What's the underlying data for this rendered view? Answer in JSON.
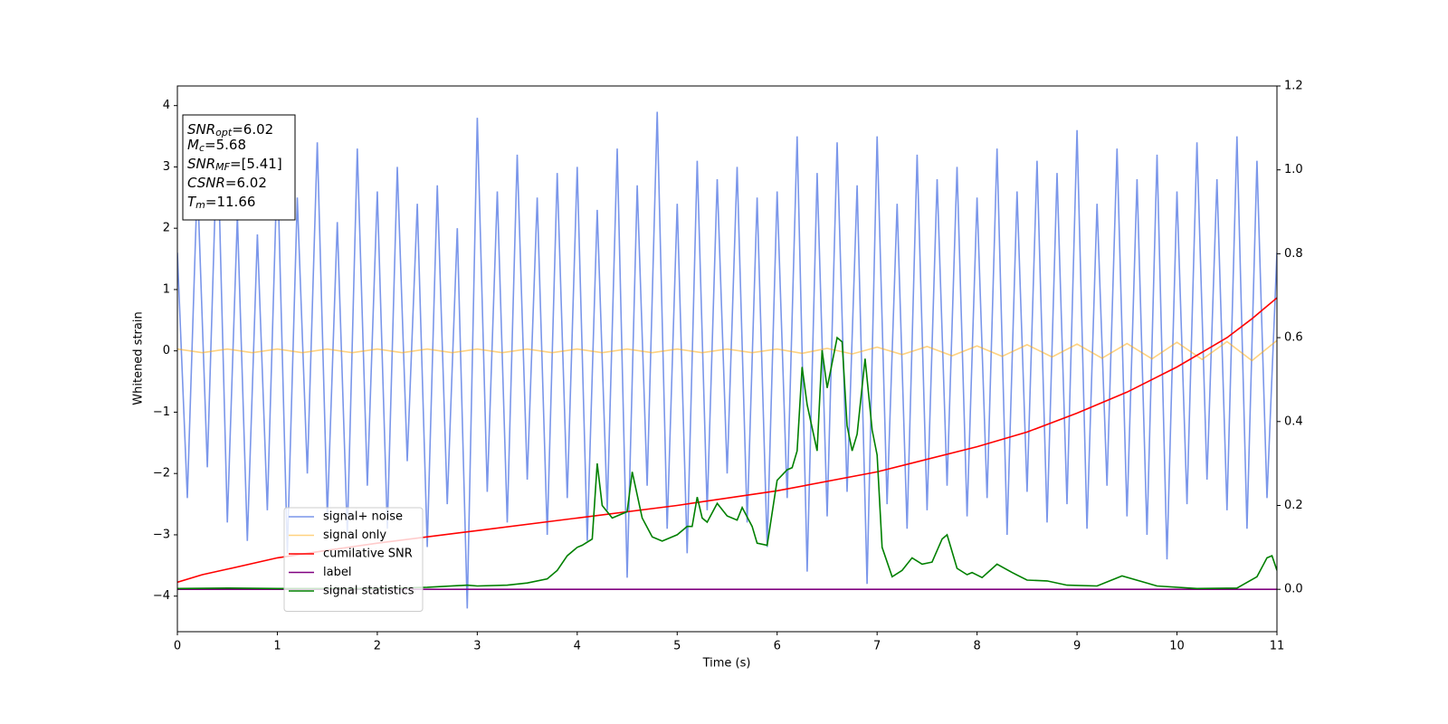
{
  "chart_data": {
    "type": "line",
    "xlabel": "Time (s)",
    "ylabel": "Whitened strain",
    "xlim": [
      0,
      11
    ],
    "ylim": [
      -4.58,
      4.32
    ],
    "y2lim": [
      -0.101,
      1.2
    ],
    "xticks": [
      0,
      1,
      2,
      3,
      4,
      5,
      6,
      7,
      8,
      9,
      10,
      11
    ],
    "yticks": [
      {
        "value": -4,
        "label": "−4"
      },
      {
        "value": -3,
        "label": "−3"
      },
      {
        "value": -2,
        "label": "−2"
      },
      {
        "value": -1,
        "label": "−1"
      },
      0,
      1,
      2,
      3,
      4
    ],
    "y2ticks": [
      {
        "value": 0,
        "label": "0.0"
      },
      0.2,
      0.4,
      0.6,
      0.8,
      {
        "value": 1,
        "label": "1.0"
      },
      1.2
    ],
    "legend": true,
    "annotation": [
      {
        "name": "SNR",
        "sub": "opt",
        "text": "=6.02"
      },
      {
        "name": "M",
        "sub": "c",
        "text": "=5.68"
      },
      {
        "name": "SNR",
        "sub": "MF",
        "text": "=[5.41]"
      },
      {
        "name": "CSNR",
        "text": "=6.02"
      },
      {
        "name": "T",
        "sub": "m",
        "text": "=11.66"
      }
    ],
    "series": [
      {
        "name": "signal+ noise",
        "color": "royalblue",
        "alpha": 0.7,
        "x": [
          0,
          0.1,
          0.2,
          0.3,
          0.4,
          0.5,
          0.6,
          0.7,
          0.8,
          0.9,
          1,
          1.1,
          1.2,
          1.3,
          1.4,
          1.5,
          1.6,
          1.7,
          1.8,
          1.9,
          2,
          2.1,
          2.2,
          2.3,
          2.4,
          2.5,
          2.6,
          2.7,
          2.8,
          2.9,
          3,
          3.1,
          3.2,
          3.3,
          3.4,
          3.5,
          3.6,
          3.7,
          3.8,
          3.9,
          4,
          4.1,
          4.2,
          4.3,
          4.4,
          4.5,
          4.6,
          4.7,
          4.8,
          4.9,
          5,
          5.1,
          5.2,
          5.3,
          5.4,
          5.5,
          5.6,
          5.7,
          5.8,
          5.9,
          6,
          6.1,
          6.2,
          6.3,
          6.4,
          6.5,
          6.6,
          6.7,
          6.8,
          6.9,
          7,
          7.1,
          7.2,
          7.3,
          7.4,
          7.5,
          7.6,
          7.7,
          7.8,
          7.9,
          8,
          8.1,
          8.2,
          8.3,
          8.4,
          8.5,
          8.6,
          8.7,
          8.8,
          8.9,
          9,
          9.1,
          9.2,
          9.3,
          9.4,
          9.5,
          9.6,
          9.7,
          9.8,
          9.9,
          10,
          10.1,
          10.2,
          10.3,
          10.4,
          10.5,
          10.6,
          10.7,
          10.8,
          10.9,
          11
        ],
        "values": [
          1.6,
          -2.4,
          2.8,
          -1.9,
          3.6,
          -2.8,
          2.2,
          -3.1,
          1.9,
          -2.6,
          3.1,
          -3.3,
          2.5,
          -2.0,
          3.4,
          -2.7,
          2.1,
          -3.0,
          3.3,
          -2.2,
          2.6,
          -2.9,
          3.0,
          -1.8,
          2.4,
          -3.2,
          2.7,
          -2.5,
          2.0,
          -4.2,
          3.8,
          -2.3,
          2.6,
          -2.8,
          3.2,
          -2.1,
          2.5,
          -3.0,
          2.9,
          -2.4,
          3.0,
          -3.1,
          2.3,
          -2.6,
          3.3,
          -3.7,
          2.7,
          -2.2,
          3.9,
          -2.9,
          2.4,
          -3.3,
          3.1,
          -2.6,
          2.8,
          -2.0,
          3.0,
          -2.8,
          2.5,
          -3.2,
          2.6,
          -2.4,
          3.5,
          -3.6,
          2.9,
          -2.7,
          3.4,
          -2.3,
          2.7,
          -3.8,
          3.5,
          -2.5,
          2.4,
          -2.9,
          3.2,
          -2.6,
          2.8,
          -2.2,
          3.0,
          -2.7,
          2.5,
          -2.4,
          3.3,
          -3.0,
          2.6,
          -2.3,
          3.1,
          -2.8,
          2.9,
          -2.5,
          3.6,
          -2.9,
          2.4,
          -2.2,
          3.3,
          -2.7,
          2.8,
          -3.0,
          3.2,
          -3.4,
          2.6,
          -2.5,
          3.4,
          -2.1,
          2.8,
          -2.6,
          3.5,
          -2.9,
          3.1,
          -2.4,
          1.6
        ]
      },
      {
        "name": "signal only",
        "color": "orange",
        "alpha": 0.5,
        "x": [
          0,
          0.25,
          0.5,
          0.75,
          1,
          1.25,
          1.5,
          1.75,
          2,
          2.25,
          2.5,
          2.75,
          3,
          3.25,
          3.5,
          3.75,
          4,
          4.25,
          4.5,
          4.75,
          5,
          5.25,
          5.5,
          5.75,
          6,
          6.25,
          6.5,
          6.75,
          7,
          7.25,
          7.5,
          7.75,
          8,
          8.25,
          8.5,
          8.75,
          9,
          9.25,
          9.5,
          9.75,
          10,
          10.25,
          10.5,
          10.75,
          11
        ],
        "values": [
          0.03,
          -0.03,
          0.03,
          -0.03,
          0.03,
          -0.03,
          0.03,
          -0.03,
          0.03,
          -0.03,
          0.03,
          -0.03,
          0.03,
          -0.03,
          0.03,
          -0.03,
          0.03,
          -0.03,
          0.03,
          -0.03,
          0.03,
          -0.03,
          0.03,
          -0.03,
          0.03,
          -0.04,
          0.04,
          -0.05,
          0.06,
          -0.06,
          0.07,
          -0.08,
          0.08,
          -0.09,
          0.1,
          -0.1,
          0.11,
          -0.12,
          0.12,
          -0.13,
          0.14,
          -0.14,
          0.15,
          -0.16,
          0.17
        ]
      },
      {
        "name": "cumilative SNR",
        "color": "red",
        "axis": "y2",
        "x": [
          0,
          0.25,
          0.5,
          1,
          1.5,
          2,
          3,
          4,
          5,
          6,
          7,
          8,
          8.5,
          9,
          9.5,
          10,
          10.25,
          10.5,
          10.75,
          11
        ],
        "values": [
          0.017,
          0.035,
          0.048,
          0.075,
          0.093,
          0.11,
          0.14,
          0.17,
          0.2,
          0.235,
          0.28,
          0.34,
          0.375,
          0.42,
          0.47,
          0.53,
          0.565,
          0.6,
          0.645,
          0.695
        ]
      },
      {
        "name": "label",
        "color": "purple",
        "axis": "y2",
        "x": [
          0,
          11
        ],
        "values": [
          0,
          0
        ]
      },
      {
        "name": "signal statistics",
        "color": "green",
        "axis": "y2",
        "x": [
          0,
          0.5,
          1,
          2,
          2.5,
          2.9,
          3.0,
          3.3,
          3.5,
          3.7,
          3.8,
          3.9,
          4.0,
          4.05,
          4.15,
          4.2,
          4.25,
          4.35,
          4.5,
          4.55,
          4.65,
          4.75,
          4.85,
          5.0,
          5.1,
          5.15,
          5.2,
          5.25,
          5.3,
          5.4,
          5.5,
          5.6,
          5.65,
          5.75,
          5.8,
          5.9,
          6.0,
          6.1,
          6.15,
          6.2,
          6.25,
          6.3,
          6.4,
          6.45,
          6.5,
          6.6,
          6.65,
          6.7,
          6.75,
          6.8,
          6.88,
          6.95,
          7.0,
          7.05,
          7.15,
          7.25,
          7.35,
          7.45,
          7.55,
          7.65,
          7.7,
          7.8,
          7.9,
          7.95,
          8.05,
          8.2,
          8.35,
          8.5,
          8.7,
          8.9,
          9.2,
          9.45,
          9.8,
          10.2,
          10.6,
          10.8,
          10.9,
          10.95,
          11
        ],
        "values": [
          0.002,
          0.003,
          0.002,
          0.002,
          0.005,
          0.01,
          0.008,
          0.01,
          0.015,
          0.025,
          0.045,
          0.08,
          0.1,
          0.105,
          0.12,
          0.3,
          0.2,
          0.17,
          0.185,
          0.28,
          0.17,
          0.125,
          0.115,
          0.13,
          0.15,
          0.15,
          0.22,
          0.17,
          0.16,
          0.205,
          0.175,
          0.165,
          0.195,
          0.15,
          0.11,
          0.105,
          0.26,
          0.285,
          0.29,
          0.33,
          0.53,
          0.44,
          0.33,
          0.57,
          0.48,
          0.6,
          0.59,
          0.39,
          0.33,
          0.37,
          0.55,
          0.38,
          0.32,
          0.1,
          0.03,
          0.045,
          0.075,
          0.06,
          0.065,
          0.12,
          0.13,
          0.05,
          0.035,
          0.04,
          0.028,
          0.06,
          0.04,
          0.022,
          0.02,
          0.01,
          0.008,
          0.032,
          0.008,
          0.002,
          0.003,
          0.03,
          0.075,
          0.08,
          0.045
        ]
      }
    ]
  }
}
